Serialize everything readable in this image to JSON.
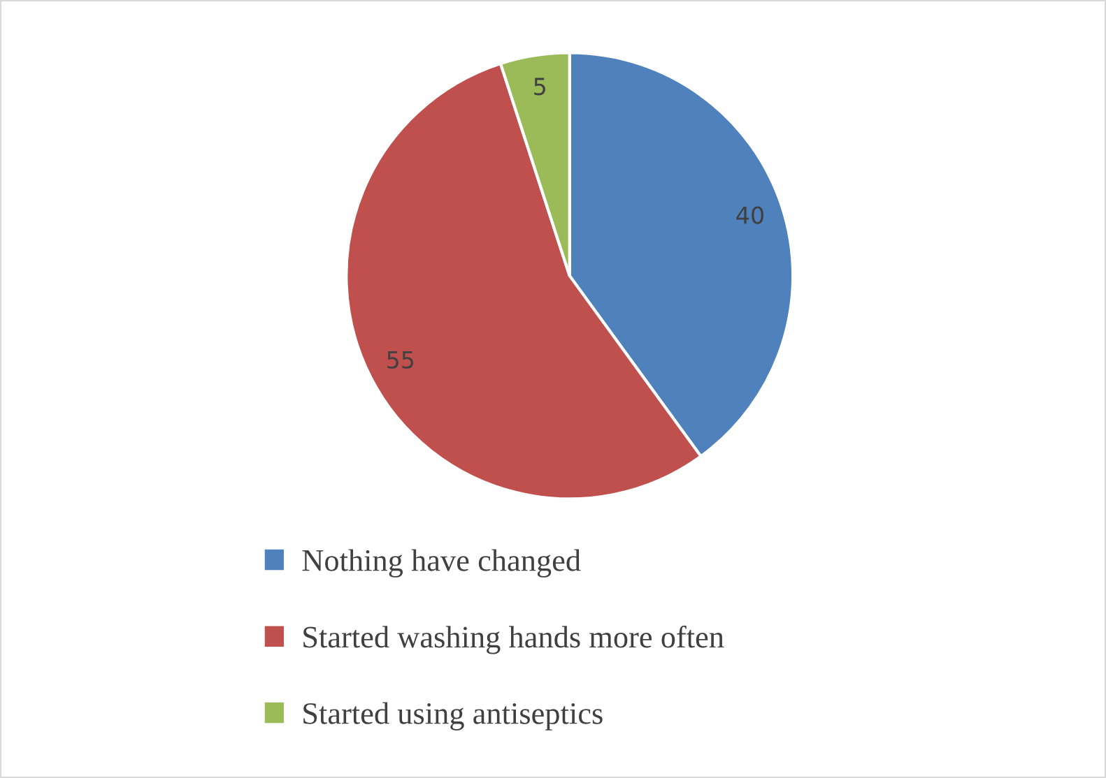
{
  "chart_data": {
    "type": "pie",
    "categories": [
      "Nothing have changed",
      "Started washing hands more often",
      "Started using antiseptics"
    ],
    "values": [
      40,
      55,
      5
    ],
    "colors": [
      "#4f81bd",
      "#c0504d",
      "#9bbb59"
    ],
    "data_labels": true,
    "legend": "bottom"
  }
}
